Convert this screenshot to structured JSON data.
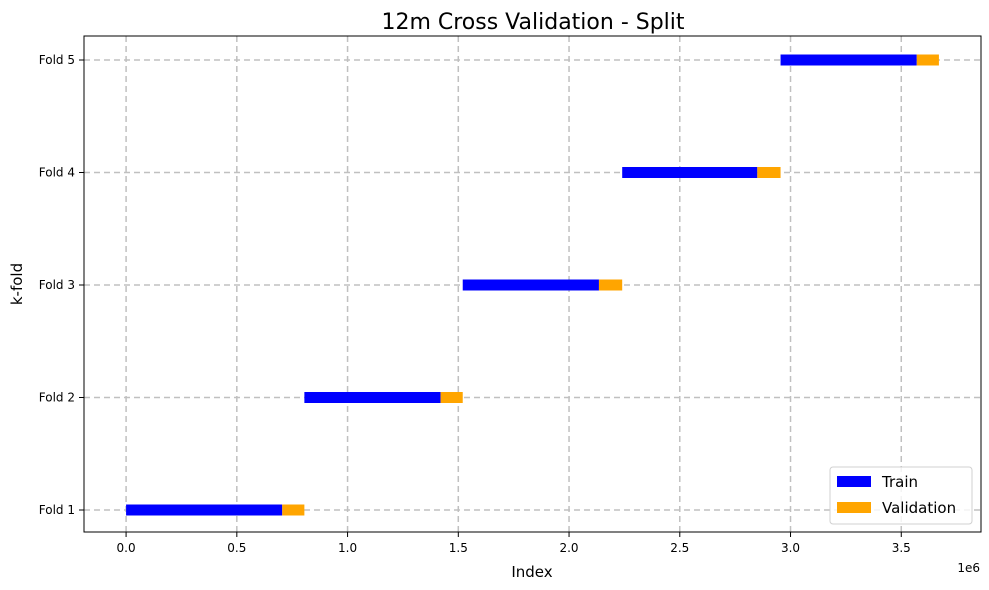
{
  "chart_data": {
    "type": "bar",
    "orientation": "horizontal",
    "title": "12m Cross Validation - Split",
    "xlabel": "Index",
    "ylabel": "k-fold",
    "x_offset_label": "1e6",
    "x_tick_values": [
      0.0,
      0.5,
      1.0,
      1.5,
      2.0,
      2.5,
      3.0,
      3.5
    ],
    "x_tick_labels": [
      "0.0",
      "0.5",
      "1.0",
      "1.5",
      "2.0",
      "2.5",
      "3.0",
      "3.5"
    ],
    "xlim": [
      -0.19,
      3.86
    ],
    "x_unit_multiplier": 1000000,
    "categories": [
      "Fold 1",
      "Fold 2",
      "Fold 3",
      "Fold 4",
      "Fold 5"
    ],
    "grid": true,
    "legend_position": "lower-right",
    "series": [
      {
        "name": "Train",
        "color": "#0000ff",
        "ranges": [
          [
            0.0,
            0.705
          ],
          [
            0.805,
            1.42
          ],
          [
            1.52,
            2.135
          ],
          [
            2.24,
            2.85
          ],
          [
            2.955,
            3.57
          ]
        ]
      },
      {
        "name": "Validation",
        "color": "#ffa500",
        "ranges": [
          [
            0.705,
            0.805
          ],
          [
            1.42,
            1.52
          ],
          [
            2.135,
            2.24
          ],
          [
            2.85,
            2.955
          ],
          [
            3.57,
            3.67
          ]
        ]
      }
    ]
  }
}
